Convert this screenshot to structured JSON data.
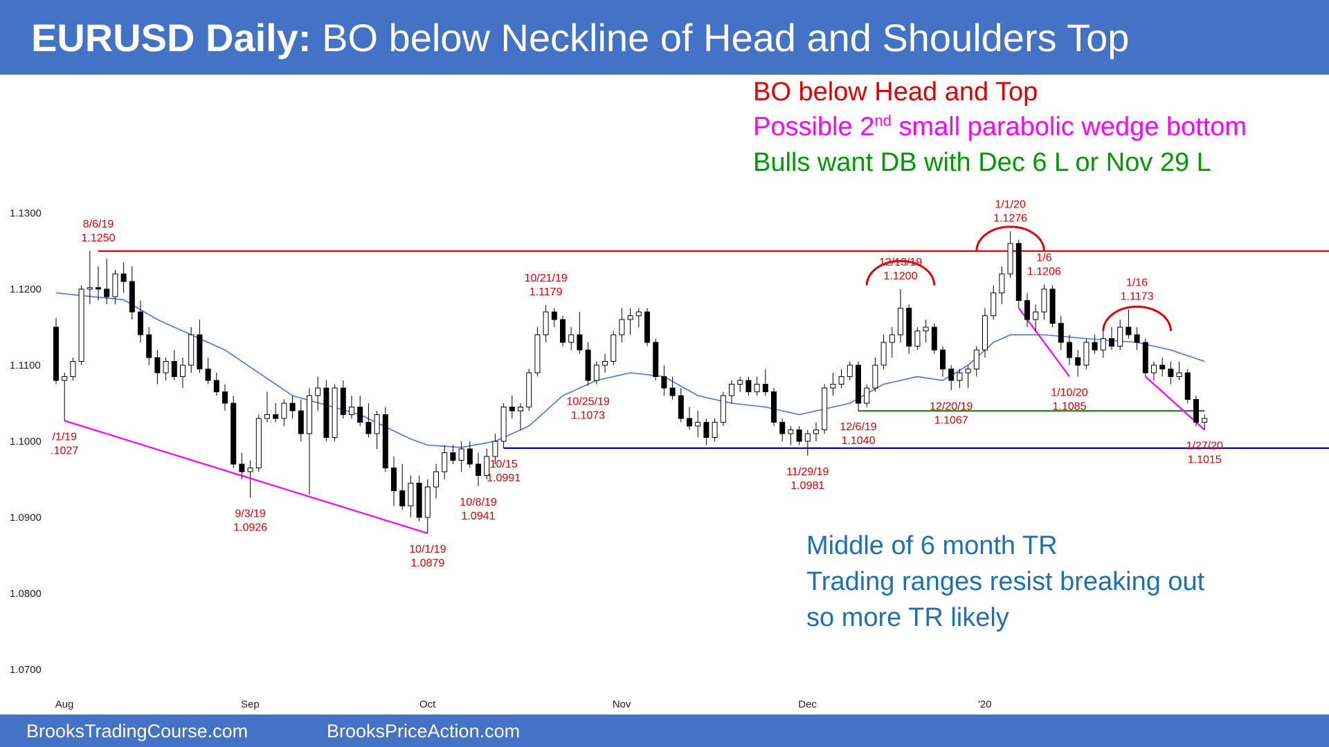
{
  "header": {
    "title_bold": "EURUSD Daily:",
    "title_rest": " BO below Neckline of Head and Shoulders Top"
  },
  "footer": {
    "link1": "BrooksTradingCourse.com",
    "link2": "BrooksPriceAction.com"
  },
  "notes": {
    "line1": "BO below Head and Top",
    "line2_a": "Possible 2",
    "line2_sup": "nd",
    "line2_b": " small parabolic wedge bottom",
    "line3": "Bulls want DB with Dec 6 L or Nov 29 L",
    "bottom1": "Middle of 6 month TR",
    "bottom2": "Trading ranges resist breaking out",
    "bottom3": "so more TR likely"
  },
  "colors": {
    "header_bg": "#4472C4",
    "red": "#e00000",
    "magenta": "#ff00ff",
    "green": "#009900",
    "blue_note": "#1F6FB5",
    "ma": "#4f6fe8",
    "range_low": "#0000cc"
  },
  "chart_data": {
    "type": "candlestick",
    "ylim": [
      1.069,
      1.131
    ],
    "yticks": [
      "1.1300",
      "1.1200",
      "1.1100",
      "1.1000",
      "1.0900",
      "1.0800",
      "1.0700"
    ],
    "ytick_values": [
      1.13,
      1.12,
      1.11,
      1.1,
      1.09,
      1.08,
      1.07
    ],
    "xticks": [
      "Aug",
      "Sep",
      "Oct",
      "Nov",
      "Dec",
      "'20"
    ],
    "xtick_index": [
      0,
      22,
      43,
      66,
      88,
      109
    ],
    "candles": [
      [
        1.115,
        1.1162,
        1.1075,
        1.108
      ],
      [
        1.108,
        1.109,
        1.1027,
        1.1085
      ],
      [
        1.1085,
        1.111,
        1.108,
        1.1105
      ],
      [
        1.1105,
        1.1205,
        1.11,
        1.12
      ],
      [
        1.12,
        1.125,
        1.118,
        1.1202
      ],
      [
        1.1202,
        1.123,
        1.1185,
        1.12
      ],
      [
        1.12,
        1.124,
        1.118,
        1.119
      ],
      [
        1.119,
        1.1225,
        1.118,
        1.122
      ],
      [
        1.122,
        1.1235,
        1.1195,
        1.121
      ],
      [
        1.121,
        1.123,
        1.116,
        1.117
      ],
      [
        1.117,
        1.1185,
        1.113,
        1.114
      ],
      [
        1.114,
        1.115,
        1.11,
        1.111
      ],
      [
        1.111,
        1.112,
        1.1075,
        1.109
      ],
      [
        1.109,
        1.111,
        1.108,
        1.1105
      ],
      [
        1.1105,
        1.112,
        1.108,
        1.1085
      ],
      [
        1.1085,
        1.111,
        1.107,
        1.11
      ],
      [
        1.11,
        1.115,
        1.109,
        1.114
      ],
      [
        1.114,
        1.116,
        1.109,
        1.1095
      ],
      [
        1.1095,
        1.111,
        1.1075,
        1.108
      ],
      [
        1.108,
        1.109,
        1.106,
        1.1065
      ],
      [
        1.1065,
        1.1075,
        1.104,
        1.105
      ],
      [
        1.105,
        1.106,
        1.0965,
        1.097
      ],
      [
        1.097,
        1.0985,
        1.095,
        1.096
      ],
      [
        1.096,
        1.0975,
        1.0926,
        1.0965
      ],
      [
        1.0965,
        1.1035,
        1.096,
        1.103
      ],
      [
        1.103,
        1.1065,
        1.1025,
        1.1035
      ],
      [
        1.1035,
        1.105,
        1.1025,
        1.103
      ],
      [
        1.103,
        1.1055,
        1.102,
        1.105
      ],
      [
        1.105,
        1.106,
        1.103,
        1.104
      ],
      [
        1.104,
        1.1055,
        1.1,
        1.101
      ],
      [
        1.101,
        1.107,
        1.093,
        1.106
      ],
      [
        1.106,
        1.1085,
        1.104,
        1.107
      ],
      [
        1.107,
        1.108,
        1.1,
        1.1005
      ],
      [
        1.1005,
        1.1075,
        1.1,
        1.107
      ],
      [
        1.107,
        1.108,
        1.103,
        1.1035
      ],
      [
        1.1035,
        1.106,
        1.103,
        1.1045
      ],
      [
        1.1045,
        1.106,
        1.102,
        1.1025
      ],
      [
        1.1025,
        1.105,
        1.1005,
        1.101
      ],
      [
        1.101,
        1.104,
        1.099,
        1.1035
      ],
      [
        1.1035,
        1.1045,
        1.096,
        1.0965
      ],
      [
        1.0965,
        1.098,
        1.0915,
        1.0935
      ],
      [
        1.0935,
        1.097,
        1.091,
        1.0915
      ],
      [
        1.0915,
        1.0955,
        1.09,
        1.0945
      ],
      [
        1.0945,
        1.0955,
        1.0895,
        1.09
      ],
      [
        1.09,
        1.095,
        1.0879,
        1.094
      ],
      [
        1.094,
        1.097,
        1.0925,
        1.096
      ],
      [
        1.096,
        1.0995,
        1.095,
        1.0985
      ],
      [
        1.0985,
        1.0995,
        1.097,
        1.0975
      ],
      [
        1.0975,
        1.1,
        1.096,
        1.099
      ],
      [
        1.099,
        1.1,
        1.0965,
        1.097
      ],
      [
        1.097,
        1.0985,
        1.0941,
        1.0955
      ],
      [
        1.0955,
        1.099,
        1.095,
        1.098
      ],
      [
        1.098,
        1.101,
        1.097,
        1.1
      ],
      [
        1.1,
        1.105,
        1.0991,
        1.1045
      ],
      [
        1.1045,
        1.106,
        1.103,
        1.104
      ],
      [
        1.104,
        1.105,
        1.1015,
        1.1045
      ],
      [
        1.1045,
        1.1095,
        1.104,
        1.109
      ],
      [
        1.109,
        1.115,
        1.1085,
        1.114
      ],
      [
        1.114,
        1.1179,
        1.113,
        1.117
      ],
      [
        1.117,
        1.1175,
        1.115,
        1.116
      ],
      [
        1.116,
        1.1165,
        1.1125,
        1.113
      ],
      [
        1.113,
        1.115,
        1.112,
        1.114
      ],
      [
        1.114,
        1.117,
        1.1115,
        1.112
      ],
      [
        1.112,
        1.113,
        1.1073,
        1.108
      ],
      [
        1.108,
        1.1105,
        1.1075,
        1.11
      ],
      [
        1.11,
        1.1115,
        1.109,
        1.1105
      ],
      [
        1.1105,
        1.1145,
        1.11,
        1.114
      ],
      [
        1.114,
        1.1175,
        1.113,
        1.116
      ],
      [
        1.116,
        1.1175,
        1.114,
        1.1165
      ],
      [
        1.1165,
        1.1175,
        1.115,
        1.117
      ],
      [
        1.117,
        1.1175,
        1.1125,
        1.113
      ],
      [
        1.113,
        1.1135,
        1.108,
        1.1085
      ],
      [
        1.1085,
        1.11,
        1.106,
        1.107
      ],
      [
        1.107,
        1.1085,
        1.1055,
        1.106
      ],
      [
        1.106,
        1.107,
        1.1025,
        1.103
      ],
      [
        1.103,
        1.1045,
        1.1015,
        1.102
      ],
      [
        1.102,
        1.104,
        1.1005,
        1.1025
      ],
      [
        1.1025,
        1.103,
        1.0995,
        1.1005
      ],
      [
        1.1005,
        1.103,
        1.1,
        1.1025
      ],
      [
        1.1025,
        1.1065,
        1.102,
        1.106
      ],
      [
        1.106,
        1.108,
        1.105,
        1.1075
      ],
      [
        1.1075,
        1.1085,
        1.1065,
        1.108
      ],
      [
        1.108,
        1.1085,
        1.106,
        1.1065
      ],
      [
        1.1065,
        1.1085,
        1.106,
        1.1075
      ],
      [
        1.1075,
        1.1095,
        1.106,
        1.1065
      ],
      [
        1.1065,
        1.107,
        1.102,
        1.1025
      ],
      [
        1.1025,
        1.103,
        1.1,
        1.101
      ],
      [
        1.101,
        1.102,
        1.0995,
        1.1015
      ],
      [
        1.1015,
        1.102,
        1.0995,
        1.1
      ],
      [
        1.1,
        1.1015,
        1.0981,
        1.101
      ],
      [
        1.101,
        1.1025,
        1.1,
        1.1015
      ],
      [
        1.1015,
        1.1075,
        1.101,
        1.107
      ],
      [
        1.107,
        1.109,
        1.106,
        1.1075
      ],
      [
        1.1075,
        1.1095,
        1.107,
        1.1085
      ],
      [
        1.1085,
        1.1105,
        1.108,
        1.11
      ],
      [
        1.11,
        1.1105,
        1.104,
        1.105
      ],
      [
        1.105,
        1.1075,
        1.1045,
        1.107
      ],
      [
        1.107,
        1.111,
        1.1065,
        1.11
      ],
      [
        1.11,
        1.114,
        1.1095,
        1.113
      ],
      [
        1.113,
        1.115,
        1.111,
        1.114
      ],
      [
        1.114,
        1.12,
        1.113,
        1.1175
      ],
      [
        1.1175,
        1.118,
        1.1115,
        1.1125
      ],
      [
        1.1125,
        1.115,
        1.112,
        1.1145
      ],
      [
        1.1145,
        1.116,
        1.113,
        1.115
      ],
      [
        1.115,
        1.1155,
        1.1115,
        1.112
      ],
      [
        1.112,
        1.1125,
        1.1085,
        1.1095
      ],
      [
        1.1095,
        1.11,
        1.1067,
        1.108
      ],
      [
        1.108,
        1.1095,
        1.107,
        1.109
      ],
      [
        1.109,
        1.11,
        1.107,
        1.1095
      ],
      [
        1.1095,
        1.1125,
        1.1085,
        1.112
      ],
      [
        1.112,
        1.1175,
        1.111,
        1.1165
      ],
      [
        1.1165,
        1.1205,
        1.116,
        1.1195
      ],
      [
        1.1195,
        1.123,
        1.118,
        1.122
      ],
      [
        1.122,
        1.1276,
        1.1215,
        1.126
      ],
      [
        1.126,
        1.1265,
        1.1175,
        1.1185
      ],
      [
        1.1185,
        1.1195,
        1.115,
        1.116
      ],
      [
        1.116,
        1.118,
        1.1145,
        1.117
      ],
      [
        1.117,
        1.1206,
        1.116,
        1.12
      ],
      [
        1.12,
        1.1205,
        1.115,
        1.1155
      ],
      [
        1.1155,
        1.1165,
        1.112,
        1.113
      ],
      [
        1.113,
        1.114,
        1.11,
        1.111
      ],
      [
        1.111,
        1.112,
        1.1085,
        1.11
      ],
      [
        1.11,
        1.1135,
        1.1095,
        1.113
      ],
      [
        1.113,
        1.114,
        1.1115,
        1.112
      ],
      [
        1.112,
        1.1145,
        1.111,
        1.1135
      ],
      [
        1.1135,
        1.115,
        1.112,
        1.1125
      ],
      [
        1.1125,
        1.116,
        1.112,
        1.115
      ],
      [
        1.115,
        1.1173,
        1.1135,
        1.114
      ],
      [
        1.114,
        1.115,
        1.112,
        1.113
      ],
      [
        1.113,
        1.1135,
        1.1085,
        1.109
      ],
      [
        1.109,
        1.1105,
        1.108,
        1.11
      ],
      [
        1.11,
        1.111,
        1.1085,
        1.1095
      ],
      [
        1.1095,
        1.1105,
        1.1075,
        1.1085
      ],
      [
        1.1085,
        1.1105,
        1.108,
        1.109
      ],
      [
        1.109,
        1.1095,
        1.105,
        1.1055
      ],
      [
        1.1055,
        1.106,
        1.102,
        1.1025
      ],
      [
        1.1025,
        1.1035,
        1.1015,
        1.103
      ]
    ],
    "moving_average": [
      [
        0,
        1.1195
      ],
      [
        8,
        1.1186
      ],
      [
        12,
        1.116
      ],
      [
        20,
        1.112
      ],
      [
        28,
        1.106
      ],
      [
        36,
        1.1035
      ],
      [
        42,
        1.1003
      ],
      [
        44,
        1.0995
      ],
      [
        48,
        1.0992
      ],
      [
        52,
        1.1
      ],
      [
        56,
        1.102
      ],
      [
        60,
        1.106
      ],
      [
        64,
        1.108
      ],
      [
        68,
        1.109
      ],
      [
        72,
        1.1085
      ],
      [
        76,
        1.106
      ],
      [
        80,
        1.105
      ],
      [
        84,
        1.1045
      ],
      [
        88,
        1.1035
      ],
      [
        90,
        1.104
      ],
      [
        94,
        1.105
      ],
      [
        98,
        1.1075
      ],
      [
        102,
        1.1085
      ],
      [
        105,
        1.108
      ],
      [
        108,
        1.11
      ],
      [
        111,
        1.113
      ],
      [
        113,
        1.114
      ],
      [
        117,
        1.114
      ],
      [
        122,
        1.1135
      ],
      [
        128,
        1.113
      ],
      [
        132,
        1.112
      ],
      [
        136,
        1.1105
      ]
    ],
    "annotations": [
      {
        "index": 1,
        "price": 1.1027,
        "date": "/1/19",
        "value": ".1027",
        "pos": "below"
      },
      {
        "index": 5,
        "price": 1.125,
        "date": "8/6/19",
        "value": "1.1250",
        "pos": "above"
      },
      {
        "index": 23,
        "price": 1.0926,
        "date": "9/3/19",
        "value": "1.0926",
        "pos": "below"
      },
      {
        "index": 44,
        "price": 1.0879,
        "date": "10/1/19",
        "value": "1.0879",
        "pos": "below"
      },
      {
        "index": 50,
        "price": 1.0941,
        "date": "10/8/19",
        "value": "1.0941",
        "pos": "below"
      },
      {
        "index": 53,
        "price": 1.0991,
        "date": "10/15",
        "value": "1.0991",
        "pos": "below"
      },
      {
        "index": 58,
        "price": 1.1179,
        "date": "10/21/19",
        "value": "1.1179",
        "pos": "above"
      },
      {
        "index": 63,
        "price": 1.1073,
        "date": "10/25/19",
        "value": "1.1073",
        "pos": "below"
      },
      {
        "index": 89,
        "price": 1.0981,
        "date": "11/29/19",
        "value": "1.0981",
        "pos": "below"
      },
      {
        "index": 95,
        "price": 1.104,
        "date": "12/6/19",
        "value": "1.1040",
        "pos": "below"
      },
      {
        "index": 100,
        "price": 1.12,
        "date": "12/13/19",
        "value": "1.1200",
        "pos": "above"
      },
      {
        "index": 106,
        "price": 1.1067,
        "date": "12/20/19",
        "value": "1.1067",
        "pos": "below"
      },
      {
        "index": 113,
        "price": 1.1276,
        "date": "1/1/20",
        "value": "1.1276",
        "pos": "above"
      },
      {
        "index": 117,
        "price": 1.1206,
        "date": "1/6",
        "value": "1.1206",
        "pos": "above"
      },
      {
        "index": 120,
        "price": 1.1085,
        "date": "1/10/20",
        "value": "1.1085",
        "pos": "below"
      },
      {
        "index": 128,
        "price": 1.1173,
        "date": "1/16",
        "value": "1.1173",
        "pos": "above"
      },
      {
        "index": 136,
        "price": 1.1015,
        "date": "1/27/20",
        "value": "1.1015",
        "pos": "below"
      }
    ],
    "lines": [
      {
        "name": "resistance",
        "color": "#e00000",
        "from": [
          5,
          1.125
        ],
        "to": [
          158,
          1.125
        ]
      },
      {
        "name": "range-low",
        "color": "#0000cc",
        "from": [
          53,
          1.0991
        ],
        "to": [
          158,
          1.0991
        ]
      },
      {
        "name": "neckline",
        "color": "#009900",
        "from": [
          95,
          1.104
        ],
        "to": [
          136,
          1.104
        ]
      },
      {
        "name": "wedge-1",
        "color": "#ff00ff",
        "from": [
          1,
          1.1027
        ],
        "to": [
          44,
          1.0879
        ]
      },
      {
        "name": "wedge-2",
        "color": "#ff00ff",
        "from": [
          114,
          1.1175
        ],
        "to": [
          120,
          1.1085
        ]
      },
      {
        "name": "wedge-3",
        "color": "#ff00ff",
        "from": [
          129,
          1.1085
        ],
        "to": [
          136,
          1.1015
        ]
      }
    ],
    "arcs": [
      {
        "name": "left-shoulder",
        "center": [
          100,
          1.1205
        ],
        "half_width": 4
      },
      {
        "name": "head",
        "center": [
          113,
          1.125
        ],
        "half_width": 4
      },
      {
        "name": "right-shoulder",
        "center": [
          128,
          1.1145
        ],
        "half_width": 4
      }
    ]
  }
}
